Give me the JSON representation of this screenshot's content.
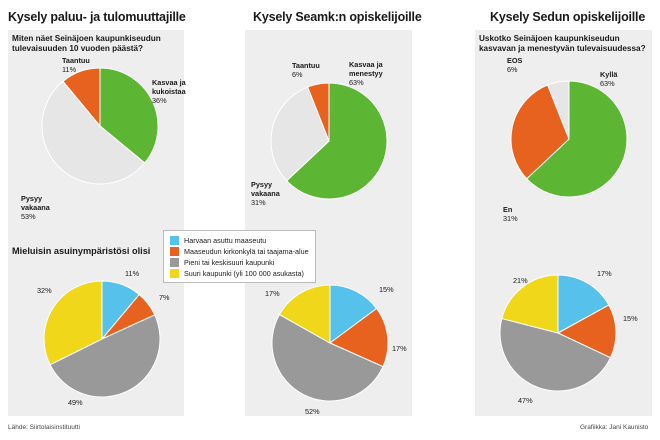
{
  "titles": {
    "panel1": "Kysely paluu- ja tulomuuttajille",
    "panel2": "Kysely Seamk:n opiskelijoille",
    "panel3": "Kysely Sedun opiskelijoille"
  },
  "questions": {
    "q1": "Miten näet Seinäjoen kaupunkiseudun tulevaisuuden 10 vuoden päästä?",
    "q2": "Mieluisin asuinympäristösi olisi",
    "q3": "Uskotko Seinäjoen kaupunkiseudun kasvavan ja menestyvän tulevaisuudessa?"
  },
  "legend": {
    "items": [
      {
        "label": "Harvaan asuttu maaseutu",
        "color": "#56c1ea"
      },
      {
        "label": "Maaseudun kirkonkylä tai taajama-alue",
        "color": "#e8621f"
      },
      {
        "label": "Pieni tai keskisuuri kaupunki",
        "color": "#999999"
      },
      {
        "label": "Suuri kaupunki (yli 100 000 asukasta)",
        "color": "#f0d71a"
      }
    ]
  },
  "footer": {
    "source": "Lähde: Siirtolaisinstituutti",
    "credit": "Grafiikka: Jani Kaunisto"
  },
  "chart_data": [
    {
      "type": "pie",
      "title": "Kysely paluu- ja tulomuuttajille",
      "subtitle": "Miten näet Seinäjoen kaupunkiseudun tulevaisuuden 10 vuoden päästä?",
      "slices": [
        {
          "name": "Kasvaa ja kukoistaa",
          "value": 36,
          "color": "#5db534"
        },
        {
          "name": "Pysyy vakaana",
          "value": 53,
          "color": "#e6e6e6"
        },
        {
          "name": "Taantuu",
          "value": 11,
          "color": "#e8621f"
        }
      ],
      "labels": [
        "Kasvaa ja kukoistaa",
        "36%",
        "Pysyy vakaana",
        "53%",
        "Taantuu",
        "11%"
      ]
    },
    {
      "type": "pie",
      "title": "Kysely Seamk:n opiskelijoille",
      "slices": [
        {
          "name": "Kasvaa ja menestyy",
          "value": 63,
          "color": "#5db534"
        },
        {
          "name": "Pysyy vakaana",
          "value": 31,
          "color": "#e6e6e6"
        },
        {
          "name": "Taantuu",
          "value": 6,
          "color": "#e8621f"
        }
      ],
      "labels": [
        "Kasvaa ja menestyy",
        "63%",
        "Pysyy vakaana",
        "31%",
        "Taantuu",
        "6%"
      ]
    },
    {
      "type": "pie",
      "title": "Kysely Sedun opiskelijoille",
      "subtitle": "Uskotko Seinäjoen kaupunkiseudun kasvavan ja menestyvän tulevaisuudessa?",
      "slices": [
        {
          "name": "Kyllä",
          "value": 63,
          "color": "#5db534"
        },
        {
          "name": "En",
          "value": 31,
          "color": "#e8621f"
        },
        {
          "name": "EOS",
          "value": 6,
          "color": "#e6e6e6"
        }
      ],
      "labels": [
        "Kyllä",
        "63%",
        "En",
        "31%",
        "EOS",
        "6%"
      ]
    },
    {
      "type": "pie",
      "title": "Mieluisin asuinympäristösi olisi",
      "slices": [
        {
          "name": "Harvaan asuttu maaseutu",
          "value": 11,
          "color": "#56c1ea"
        },
        {
          "name": "Maaseudun kirkonkylä tai taajama-alue",
          "value": 7,
          "color": "#e8621f"
        },
        {
          "name": "Pieni tai keskisuuri kaupunki",
          "value": 49,
          "color": "#999999"
        },
        {
          "name": "Suuri kaupunki (yli 100 000 asukasta)",
          "value": 32,
          "color": "#f0d71a"
        }
      ],
      "labels": [
        "11%",
        "7%",
        "49%",
        "32%"
      ]
    },
    {
      "type": "pie",
      "slices": [
        {
          "name": "Harvaan asuttu maaseutu",
          "value": 15,
          "color": "#56c1ea"
        },
        {
          "name": "Maaseudun kirkonkylä tai taajama-alue",
          "value": 17,
          "color": "#e8621f"
        },
        {
          "name": "Pieni tai keskisuuri kaupunki",
          "value": 52,
          "color": "#999999"
        },
        {
          "name": "Suuri kaupunki (yli 100 000 asukasta)",
          "value": 17,
          "color": "#f0d71a"
        }
      ],
      "labels": [
        "15%",
        "17%",
        "52%",
        "17%"
      ]
    },
    {
      "type": "pie",
      "slices": [
        {
          "name": "Harvaan asuttu maaseutu",
          "value": 17,
          "color": "#56c1ea"
        },
        {
          "name": "Maaseudun kirkonkylä tai taajama-alue",
          "value": 15,
          "color": "#e8621f"
        },
        {
          "name": "Pieni tai keskisuuri kaupunki",
          "value": 47,
          "color": "#999999"
        },
        {
          "name": "Suuri kaupunki (yli 100 000 asukasta)",
          "value": 21,
          "color": "#f0d71a"
        }
      ],
      "labels": [
        "17%",
        "15%",
        "47%",
        "21%"
      ]
    }
  ]
}
